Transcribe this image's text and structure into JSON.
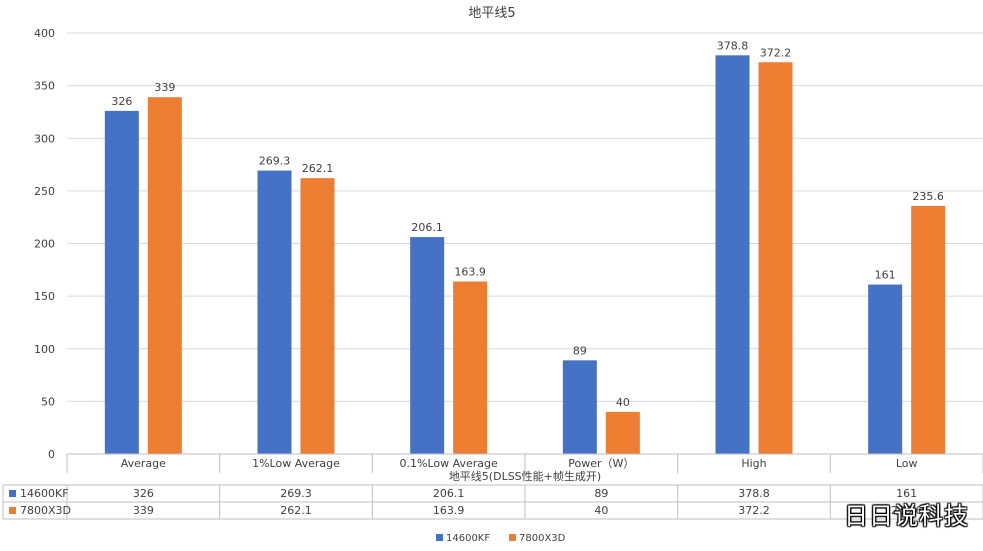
{
  "chart_data": {
    "type": "bar",
    "title": "地平线5",
    "xlabel": "地平线5(DLSS性能+帧生成开)",
    "ylabel": "",
    "ylim": [
      0,
      400
    ],
    "yticks": [
      0,
      50,
      100,
      150,
      200,
      250,
      300,
      350,
      400
    ],
    "categories": [
      "Average",
      "1%Low Average",
      "0.1%Low Average",
      "Power（W）",
      "High",
      "Low"
    ],
    "series": [
      {
        "name": "14600KF",
        "color": "#4472C4",
        "values": [
          326,
          269.3,
          206.1,
          89,
          378.8,
          161
        ]
      },
      {
        "name": "7800X3D",
        "color": "#ED7D31",
        "values": [
          339,
          262.1,
          163.9,
          40,
          372.2,
          235.6
        ]
      }
    ],
    "grid": true,
    "legend": "bottom",
    "data_table": true
  },
  "watermark": "日日说科技"
}
